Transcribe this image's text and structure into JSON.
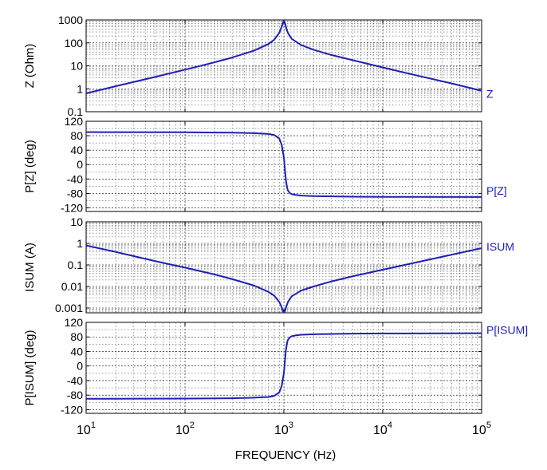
{
  "colors": {
    "series": "#1f1fb4",
    "axis": "#000000",
    "background": "#ffffff"
  },
  "chart_data": {
    "type": "line",
    "shared_x": {
      "label": "FREQUENCY  (Hz)",
      "scale": "log",
      "range": [
        10,
        100000
      ],
      "ticks": [
        {
          "value": 10,
          "base": "10",
          "exp": "1"
        },
        {
          "value": 100,
          "base": "10",
          "exp": "2"
        },
        {
          "value": 1000,
          "base": "10",
          "exp": "3"
        },
        {
          "value": 10000,
          "base": "10",
          "exp": "4"
        },
        {
          "value": 100000,
          "base": "10",
          "exp": "5"
        }
      ]
    },
    "grid": true,
    "panels": [
      {
        "id": "z",
        "ylabel": "Z  (Ohm)",
        "yscale": "log",
        "ylim": [
          0.1,
          1000
        ],
        "yticks": [
          {
            "value": 1000,
            "label": "1000"
          },
          {
            "value": 100,
            "label": "100"
          },
          {
            "value": 10,
            "label": "10"
          },
          {
            "value": 1,
            "label": "1"
          },
          {
            "value": 0.1,
            "label": "0.1"
          }
        ],
        "series": {
          "name": "Z",
          "x": [
            10,
            20,
            50,
            100,
            200,
            300,
            500,
            700,
            800,
            900,
            950,
            1000,
            1030,
            1060,
            1100,
            1200,
            1500,
            2000,
            3000,
            5000,
            10000,
            20000,
            50000,
            100000
          ],
          "y": [
            0.63,
            1.3,
            3.3,
            6.8,
            14.3,
            23,
            46,
            90,
            139,
            276,
            500,
            1000,
            700,
            420,
            270,
            150,
            80,
            50,
            30,
            17.5,
            8.5,
            4.2,
            1.7,
            0.82
          ]
        }
      },
      {
        "id": "pz",
        "ylabel": "P[Z]  (deg)",
        "yscale": "linear",
        "ylim": [
          -130,
          120
        ],
        "yticks": [
          {
            "value": 120,
            "label": "120"
          },
          {
            "value": 80,
            "label": "80"
          },
          {
            "value": 40,
            "label": "40"
          },
          {
            "value": 0,
            "label": "0"
          },
          {
            "value": -40,
            "label": "-40"
          },
          {
            "value": -80,
            "label": "-80"
          },
          {
            "value": -120,
            "label": "-120"
          }
        ],
        "series": {
          "name": "P[Z]",
          "x": [
            10,
            100,
            300,
            500,
            700,
            800,
            900,
            950,
            1000,
            1030,
            1050,
            1080,
            1100,
            1150,
            1200,
            1300,
            1500,
            2000,
            5000,
            10000,
            100000
          ],
          "y": [
            90,
            89.5,
            88.5,
            87,
            85,
            82,
            72,
            55,
            20,
            -20,
            -45,
            -65,
            -72,
            -79,
            -82,
            -84,
            -86,
            -87.5,
            -89,
            -89.5,
            -90
          ]
        }
      },
      {
        "id": "isum",
        "ylabel": "ISUM  (A)",
        "yscale": "log",
        "ylim": [
          0.0006,
          10
        ],
        "yticks": [
          {
            "value": 10,
            "label": "10"
          },
          {
            "value": 1,
            "label": "1"
          },
          {
            "value": 0.1,
            "label": "0.1"
          },
          {
            "value": 0.01,
            "label": "0.01"
          },
          {
            "value": 0.001,
            "label": "0.001"
          }
        ],
        "series": {
          "name": "ISUM",
          "x": [
            10,
            20,
            50,
            100,
            200,
            300,
            500,
            700,
            800,
            900,
            950,
            1000,
            1030,
            1060,
            1100,
            1200,
            1500,
            2000,
            3000,
            5000,
            10000,
            20000,
            50000,
            100000
          ],
          "y": [
            0.8,
            0.4,
            0.15,
            0.075,
            0.036,
            0.022,
            0.011,
            0.0056,
            0.0037,
            0.0019,
            0.0011,
            0.00055,
            0.00075,
            0.0012,
            0.0019,
            0.0035,
            0.0065,
            0.01,
            0.017,
            0.03,
            0.06,
            0.12,
            0.3,
            0.6
          ]
        }
      },
      {
        "id": "pisum",
        "ylabel": "P[ISUM]  (deg)",
        "yscale": "linear",
        "ylim": [
          -130,
          120
        ],
        "yticks": [
          {
            "value": 120,
            "label": "120"
          },
          {
            "value": 80,
            "label": "80"
          },
          {
            "value": 40,
            "label": "40"
          },
          {
            "value": 0,
            "label": "0"
          },
          {
            "value": -40,
            "label": "-40"
          },
          {
            "value": -80,
            "label": "-80"
          },
          {
            "value": -120,
            "label": "-120"
          }
        ],
        "series": {
          "name": "P[ISUM]",
          "x": [
            10,
            100,
            300,
            500,
            700,
            800,
            900,
            950,
            1000,
            1030,
            1050,
            1080,
            1100,
            1150,
            1200,
            1300,
            1500,
            2000,
            5000,
            10000,
            100000
          ],
          "y": [
            -90,
            -89.5,
            -88.5,
            -87,
            -85,
            -82,
            -72,
            -55,
            -20,
            20,
            45,
            65,
            72,
            79,
            82,
            84,
            86,
            87.5,
            89,
            89.5,
            90
          ]
        }
      }
    ]
  }
}
